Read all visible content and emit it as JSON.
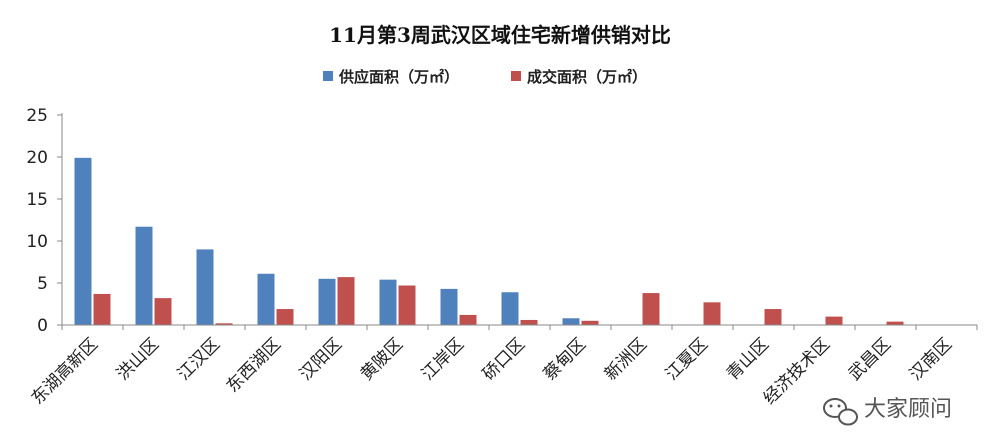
{
  "chart_data": {
    "type": "bar",
    "title": "11月第3周武汉区域住宅新增供销对比",
    "categories": [
      "东湖高新区",
      "洪山区",
      "江汉区",
      "东西湖区",
      "汉阳区",
      "黄陂区",
      "江岸区",
      "硚口区",
      "蔡甸区",
      "新洲区",
      "江夏区",
      "青山区",
      "经济技术区",
      "武昌区",
      "汉南区"
    ],
    "series": [
      {
        "name": "供应面积（万㎡）",
        "color": "#4f81bd",
        "values": [
          19.9,
          11.7,
          9.0,
          6.1,
          5.5,
          5.4,
          4.3,
          3.9,
          0.8,
          0,
          0,
          0,
          0,
          0,
          0
        ]
      },
      {
        "name": "成交面积（万㎡）",
        "color": "#c0504d",
        "values": [
          3.7,
          3.2,
          0.2,
          1.9,
          5.7,
          4.7,
          1.2,
          0.6,
          0.5,
          3.8,
          2.7,
          1.9,
          1.0,
          0.4,
          0
        ]
      }
    ],
    "yticks": [
      "0",
      "5",
      "10",
      "15",
      "20",
      "25"
    ],
    "ylim": [
      0,
      25
    ],
    "legend_position": "top-center",
    "grid": false
  },
  "watermark": {
    "text": "大家顾问",
    "icon": "wechat-icon"
  }
}
